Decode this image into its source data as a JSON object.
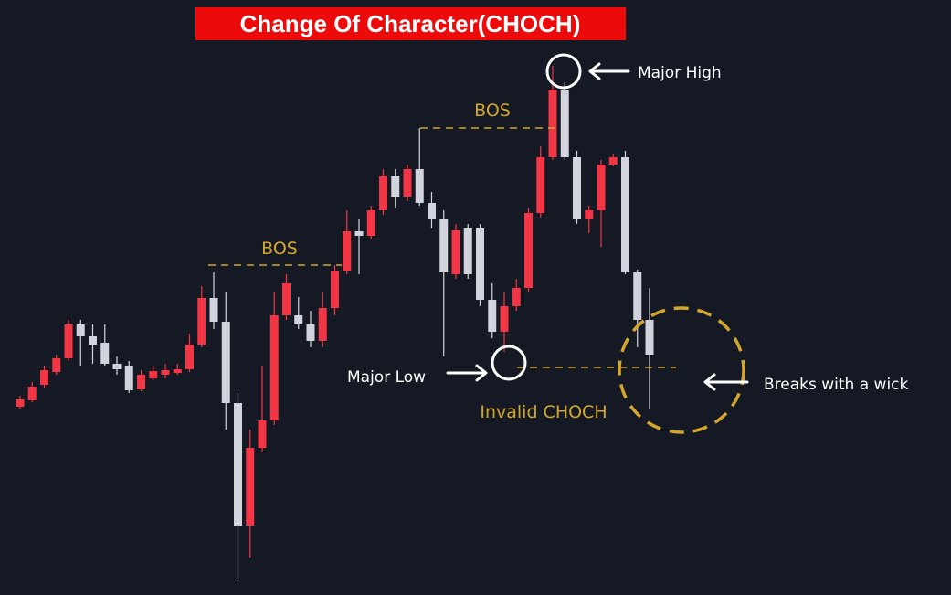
{
  "chart_data": {
    "type": "candlestick",
    "title": "Change Of Character(CHOCH)",
    "ylim": [
      0,
      650
    ],
    "up_color": "#f23645",
    "down_color": "#d1d4dc",
    "open": [
      205,
      212,
      229,
      243,
      258,
      295,
      282,
      275,
      252,
      250,
      224,
      236,
      240,
      242,
      246,
      273,
      324,
      298,
      209,
      75,
      160,
      190,
      305,
      305,
      295,
      277,
      313,
      354,
      397,
      392,
      420,
      457,
      435,
      465,
      428,
      410,
      350,
      400,
      400,
      322,
      287,
      315,
      335,
      417,
      478,
      552,
      478,
      410,
      420,
      470,
      478,
      352,
      300
    ],
    "high": [
      217,
      232,
      250,
      262,
      300,
      300,
      295,
      295,
      260,
      255,
      245,
      250,
      252,
      252,
      285,
      337,
      352,
      330,
      220,
      180,
      250,
      330,
      350,
      325,
      310,
      330,
      360,
      420,
      410,
      425,
      465,
      465,
      470,
      510,
      440,
      420,
      405,
      405,
      405,
      340,
      330,
      345,
      422,
      490,
      578,
      560,
      485,
      425,
      475,
      482,
      485,
      355,
      335
    ],
    "low": [
      203,
      210,
      226,
      240,
      255,
      250,
      252,
      250,
      240,
      220,
      222,
      234,
      236,
      240,
      243,
      270,
      290,
      180,
      17,
      40,
      155,
      185,
      300,
      290,
      270,
      270,
      305,
      350,
      350,
      388,
      415,
      422,
      430,
      425,
      400,
      260,
      345,
      345,
      315,
      280,
      265,
      310,
      330,
      412,
      475,
      475,
      405,
      395,
      380,
      468,
      350,
      270,
      202
    ],
    "close": [
      213,
      227,
      245,
      258,
      295,
      282,
      273,
      252,
      246,
      223,
      240,
      244,
      245,
      246,
      273,
      324,
      298,
      209,
      75,
      160,
      190,
      305,
      340,
      295,
      277,
      313,
      354,
      397,
      392,
      420,
      457,
      435,
      465,
      428,
      410,
      352,
      398,
      350,
      322,
      287,
      315,
      335,
      417,
      478,
      552,
      478,
      410,
      420,
      470,
      478,
      352,
      300,
      262
    ],
    "levels": [
      {
        "label": "BOS",
        "value": 360
      },
      {
        "label": "BOS",
        "value": 510
      },
      {
        "label": "Invalid CHOCH",
        "value": 248
      }
    ],
    "annotations": [
      "Major High",
      "Major Low",
      "Breaks with a wick"
    ]
  }
}
